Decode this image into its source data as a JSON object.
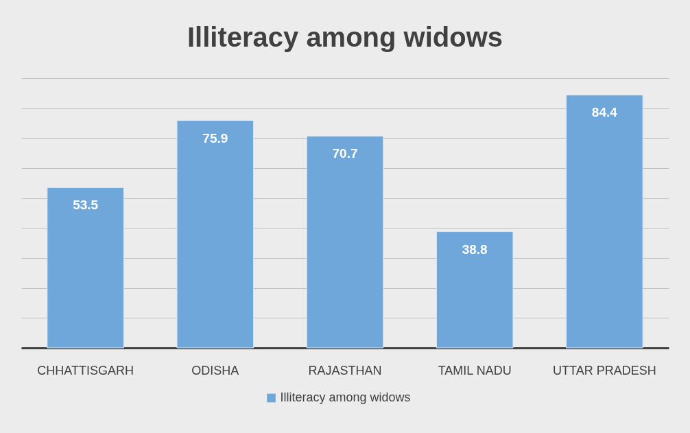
{
  "chart_data": {
    "type": "bar",
    "title": "Illiteracy among widows",
    "categories": [
      "CHHATTISGARH",
      "ODISHA",
      "RAJASTHAN",
      "TAMIL NADU",
      "UTTAR PRADESH"
    ],
    "series": [
      {
        "name": "Illiteracy among widows",
        "color": "#70a7da",
        "values": [
          53.5,
          75.9,
          70.7,
          38.8,
          84.4
        ]
      }
    ],
    "ylim": [
      0,
      90
    ],
    "yticks": [
      {
        "value": 0,
        "label": null
      },
      {
        "value": 10,
        "label": null
      },
      {
        "value": 20,
        "label": null
      },
      {
        "value": 30,
        "label": null
      },
      {
        "value": 40,
        "label": null
      },
      {
        "value": 50,
        "label": null
      },
      {
        "value": 60,
        "label": null
      },
      {
        "value": 70,
        "label": null
      },
      {
        "value": 80,
        "label": null
      },
      {
        "value": 90,
        "label": null
      }
    ],
    "grid": "y",
    "tick_labels": "x",
    "data_labels": true,
    "legend": "bottom"
  }
}
